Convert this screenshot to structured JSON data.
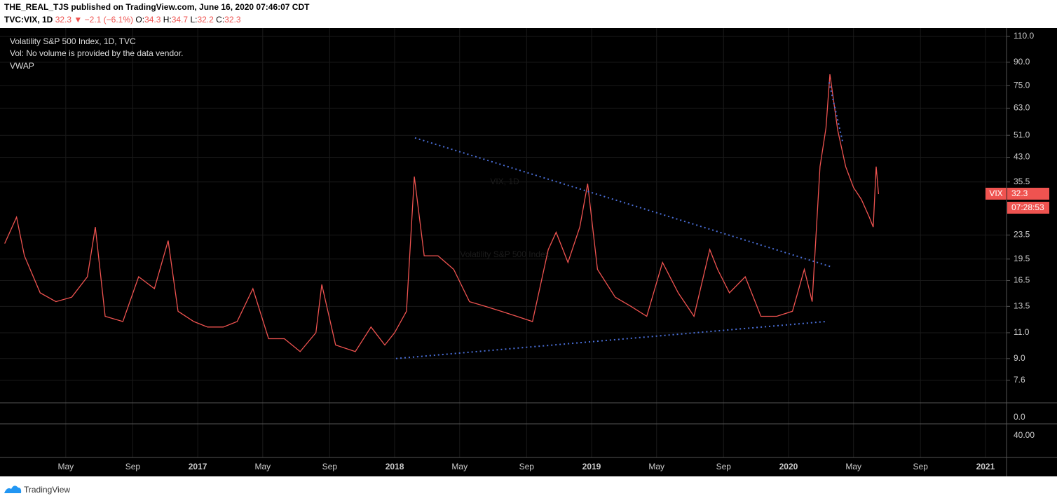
{
  "header": {
    "publisher": "THE_REAL_TJS published on TradingView.com, June 16, 2020 07:46:07 CDT",
    "symbol": "TVC:VIX, 1D",
    "last": "32.3",
    "arrow": "▼",
    "change": "−2.1 (−6.1%)",
    "o_label": "O:",
    "o": "34.3",
    "h_label": "H:",
    "h": "34.7",
    "l_label": "L:",
    "l": "32.2",
    "c_label": "C:",
    "c": "32.3"
  },
  "legend": {
    "title": "Volatility S&P 500 Index, 1D, TVC",
    "vol": "Vol: No volume is provided by the data vendor.",
    "vwap": "VWAP"
  },
  "watermark": {
    "symbol": "VIX, 1D",
    "name": "Volatility S&P 500 Index"
  },
  "price_tag": {
    "symbol": "VIX",
    "countdown": "07:28:53"
  },
  "footer": {
    "brand": "TradingView"
  },
  "panes": {
    "vol_tick": "0.0",
    "vwap_tick": "40.00"
  },
  "chart_data": {
    "type": "line",
    "log_scale": true,
    "grid": true,
    "x": [
      2016.02,
      2016.08,
      2016.12,
      2016.2,
      2016.28,
      2016.36,
      2016.44,
      2016.48,
      2016.53,
      2016.62,
      2016.7,
      2016.78,
      2016.85,
      2016.9,
      2016.98,
      2017.05,
      2017.13,
      2017.2,
      2017.28,
      2017.36,
      2017.44,
      2017.52,
      2017.6,
      2017.63,
      2017.7,
      2017.8,
      2017.88,
      2017.95,
      2018.0,
      2018.06,
      2018.1,
      2018.15,
      2018.22,
      2018.3,
      2018.38,
      2018.46,
      2018.54,
      2018.62,
      2018.7,
      2018.78,
      2018.82,
      2018.88,
      2018.94,
      2018.98,
      2019.03,
      2019.12,
      2019.2,
      2019.28,
      2019.36,
      2019.44,
      2019.52,
      2019.6,
      2019.64,
      2019.7,
      2019.78,
      2019.86,
      2019.94,
      2020.02,
      2020.08,
      2020.12,
      2020.16,
      2020.19,
      2020.21,
      2020.25,
      2020.29,
      2020.33,
      2020.37,
      2020.41,
      2020.43,
      2020.445,
      2020.457
    ],
    "series": [
      {
        "name": "VIX",
        "color": "#ef5350",
        "values": [
          22,
          27,
          20,
          15,
          14,
          14.5,
          17,
          25,
          12.5,
          12,
          17,
          15.5,
          22.5,
          13,
          12,
          11.5,
          11.5,
          12,
          15.5,
          10.5,
          10.5,
          9.5,
          11,
          16,
          10,
          9.5,
          11.5,
          10,
          11,
          13,
          37,
          20,
          20,
          18,
          14,
          13.5,
          13,
          12.5,
          12,
          21,
          24,
          19,
          25,
          35,
          18,
          14.5,
          13.5,
          12.5,
          19,
          15,
          12.5,
          21,
          18,
          15,
          17,
          12.5,
          12.5,
          13,
          18,
          14,
          40,
          54,
          82,
          53,
          40,
          34,
          31,
          27,
          25,
          40,
          32.3
        ]
      }
    ],
    "drawings": [
      {
        "color": "#4a6fd8",
        "x": [
          2018.103,
          2020.224
        ],
        "values": [
          50,
          18.3
        ]
      },
      {
        "color": "#4a6fd8",
        "x": [
          2018.007,
          2020.189
        ],
        "values": [
          9.0,
          12.0
        ]
      },
      {
        "color": "#4a6fd8",
        "x": [
          2020.206,
          2020.277
        ],
        "values": [
          77,
          47.8
        ]
      }
    ],
    "xlim": [
      2015.996,
      2021.107
    ],
    "xticks": [
      {
        "value": 2016.33,
        "label": "May"
      },
      {
        "value": 2016.67,
        "label": "Sep"
      },
      {
        "value": 2017,
        "label": "2017"
      },
      {
        "value": 2017.33,
        "label": "May"
      },
      {
        "value": 2017.67,
        "label": "Sep"
      },
      {
        "value": 2018,
        "label": "2018"
      },
      {
        "value": 2018.33,
        "label": "May"
      },
      {
        "value": 2018.67,
        "label": "Sep"
      },
      {
        "value": 2019,
        "label": "2019"
      },
      {
        "value": 2019.33,
        "label": "May"
      },
      {
        "value": 2019.67,
        "label": "Sep"
      },
      {
        "value": 2020,
        "label": "2020"
      },
      {
        "value": 2020.33,
        "label": "May"
      },
      {
        "value": 2020.67,
        "label": "Sep"
      },
      {
        "value": 2021,
        "label": "2021"
      }
    ],
    "ylim": [
      6.38,
      114.9
    ],
    "yticks": [
      {
        "value": 7.6,
        "label": "7.6"
      },
      {
        "value": 9,
        "label": "9.0"
      },
      {
        "value": 11,
        "label": "11.0"
      },
      {
        "value": 13.5,
        "label": "13.5"
      },
      {
        "value": 16.5,
        "label": "16.5"
      },
      {
        "value": 19.5,
        "label": "19.5"
      },
      {
        "value": 23.5,
        "label": "23.5"
      },
      {
        "value": 35.5,
        "label": "35.5"
      },
      {
        "value": 43,
        "label": "43.0"
      },
      {
        "value": 51,
        "label": "51.0"
      },
      {
        "value": 63,
        "label": "63.0"
      },
      {
        "value": 75,
        "label": "75.0"
      },
      {
        "value": 90,
        "label": "90.0"
      },
      {
        "value": 110,
        "label": "110.0"
      }
    ]
  }
}
